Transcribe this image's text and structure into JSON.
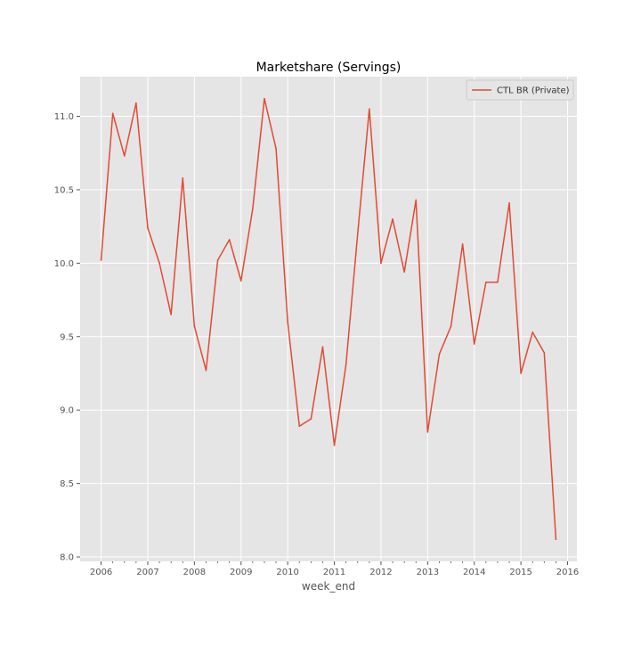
{
  "chart_data": {
    "type": "line",
    "title": "Marketshare (Servings)",
    "xlabel": "week_end",
    "ylabel": "",
    "grid": true,
    "legend_position": "top-right",
    "xlim": [
      2005.55,
      2016.2
    ],
    "ylim": [
      7.97,
      11.27
    ],
    "x_ticks": [
      2006,
      2007,
      2008,
      2009,
      2010,
      2011,
      2012,
      2013,
      2014,
      2015,
      2016
    ],
    "x_tick_labels": [
      "2006",
      "2007",
      "2008",
      "2009",
      "2010",
      "2011",
      "2012",
      "2013",
      "2014",
      "2015",
      "2016"
    ],
    "y_ticks": [
      8.0,
      8.5,
      9.0,
      9.5,
      10.0,
      10.5,
      11.0
    ],
    "y_tick_labels": [
      "8.0",
      "8.5",
      "9.0",
      "9.5",
      "10.0",
      "10.5",
      "11.0"
    ],
    "series": [
      {
        "name": "CTL BR (Private)",
        "color": "#E24A33",
        "x": [
          2006.0,
          2006.25,
          2006.5,
          2006.75,
          2007.0,
          2007.25,
          2007.5,
          2007.75,
          2008.0,
          2008.25,
          2008.5,
          2008.75,
          2009.0,
          2009.25,
          2009.5,
          2009.75,
          2010.0,
          2010.25,
          2010.5,
          2010.75,
          2011.0,
          2011.25,
          2011.5,
          2011.75,
          2012.0,
          2012.25,
          2012.5,
          2012.75,
          2013.0,
          2013.25,
          2013.5,
          2013.75,
          2014.0,
          2014.25,
          2014.5,
          2014.75,
          2015.0,
          2015.25,
          2015.5,
          2015.75
        ],
        "values": [
          10.02,
          11.02,
          10.73,
          11.09,
          10.24,
          10.0,
          9.65,
          10.58,
          9.57,
          9.27,
          10.02,
          10.16,
          9.88,
          10.37,
          11.12,
          10.78,
          9.6,
          8.89,
          8.94,
          9.43,
          8.76,
          9.31,
          10.2,
          11.05,
          10.0,
          10.3,
          9.94,
          10.43,
          8.85,
          9.38,
          9.57,
          10.13,
          9.45,
          9.87,
          9.87,
          10.41,
          9.25,
          9.53,
          9.39,
          8.12
        ]
      }
    ]
  }
}
